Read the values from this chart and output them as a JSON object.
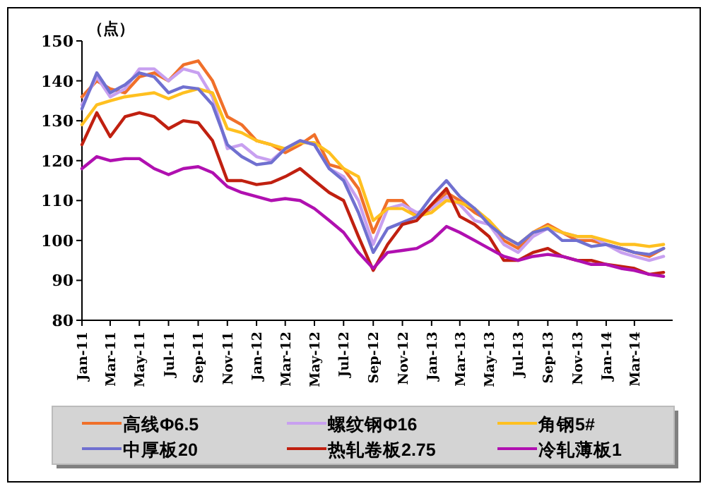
{
  "chart_data": {
    "type": "line",
    "ylabel": "（点）",
    "x": [
      "2011-01",
      "2011-02",
      "2011-03",
      "2011-04",
      "2011-05",
      "2011-06",
      "2011-07",
      "2011-08",
      "2011-09",
      "2011-10",
      "2011-11",
      "2011-12",
      "2012-01",
      "2012-02",
      "2012-03",
      "2012-04",
      "2012-05",
      "2012-06",
      "2012-07",
      "2012-08",
      "2012-09",
      "2012-10",
      "2012-11",
      "2012-12",
      "2013-01",
      "2013-02",
      "2013-03",
      "2013-04",
      "2013-05",
      "2013-06",
      "2013-07",
      "2013-08",
      "2013-09",
      "2013-10",
      "2013-11",
      "2013-12",
      "2014-01",
      "2014-02",
      "2014-03",
      "2014-04",
      "2014-05"
    ],
    "xlim": [
      "2011-01",
      "2014-05-20"
    ],
    "xticks": [
      {
        "value": "2011-01",
        "label": "Jan-11"
      },
      {
        "value": "2011-03",
        "label": "Mar-11"
      },
      {
        "value": "2011-05",
        "label": "May-11"
      },
      {
        "value": "2011-07",
        "label": "Jul-11"
      },
      {
        "value": "2011-09",
        "label": "Sep-11"
      },
      {
        "value": "2011-11",
        "label": "Nov-11"
      },
      {
        "value": "2012-01",
        "label": "Jan-12"
      },
      {
        "value": "2012-03",
        "label": "Mar-12"
      },
      {
        "value": "2012-05",
        "label": "May-12"
      },
      {
        "value": "2012-07",
        "label": "Jul-12"
      },
      {
        "value": "2012-09",
        "label": "Sep-12"
      },
      {
        "value": "2012-11",
        "label": "Nov-12"
      },
      {
        "value": "2013-01",
        "label": "Jan-13"
      },
      {
        "value": "2013-03",
        "label": "Mar-13"
      },
      {
        "value": "2013-05",
        "label": "May-13"
      },
      {
        "value": "2013-07",
        "label": "Jul-13"
      },
      {
        "value": "2013-09",
        "label": "Sep-13"
      },
      {
        "value": "2013-11",
        "label": "Nov-13"
      },
      {
        "value": "2014-01",
        "label": "Jan-14"
      },
      {
        "value": "2014-03",
        "label": "Mar-14"
      }
    ],
    "ylim": [
      80,
      150
    ],
    "yticks": [
      80,
      90,
      100,
      110,
      120,
      130,
      140,
      150
    ],
    "grid": false,
    "legend": "bottom",
    "marker": "none",
    "line_style": "solid",
    "series": [
      {
        "name": "高线Φ6.5",
        "color": "#f0702a",
        "values": [
          136,
          140,
          138,
          137,
          141,
          142,
          140,
          144,
          145,
          140,
          131,
          129,
          125,
          124,
          122,
          124,
          126.5,
          119,
          118,
          113,
          102,
          110,
          110,
          106,
          108,
          112,
          110,
          107,
          105,
          100,
          98,
          102,
          104,
          102,
          100,
          100,
          99,
          98,
          97,
          96,
          98
        ]
      },
      {
        "name": "螺纹钢Φ16",
        "color": "#c8a0f0",
        "values": [
          134,
          141,
          136,
          138,
          143,
          143,
          140,
          143,
          142,
          136,
          123,
          124,
          121,
          120,
          123,
          125,
          124,
          118,
          116,
          110,
          99,
          108,
          109,
          107,
          108,
          111,
          109,
          105,
          104,
          99,
          97,
          101,
          103,
          102,
          101,
          101,
          99,
          97,
          96,
          95,
          96
        ]
      },
      {
        "name": "角钢5#",
        "color": "#ffc020",
        "values": [
          129,
          134,
          135,
          136,
          136.5,
          137,
          135.5,
          137,
          138,
          137,
          128,
          127,
          125,
          124,
          123,
          124.5,
          124.5,
          122,
          118,
          116,
          105,
          108,
          108,
          106,
          107,
          110,
          109.5,
          108,
          105,
          101,
          99,
          102,
          103.5,
          102,
          101,
          101,
          100,
          99,
          99,
          98.5,
          99
        ]
      },
      {
        "name": "中厚板20",
        "color": "#7070d0",
        "values": [
          133,
          142,
          137,
          139,
          142,
          141,
          137,
          138.5,
          138,
          134,
          124,
          121,
          119,
          119.5,
          123,
          125,
          124,
          118,
          115,
          107,
          97,
          103,
          104.5,
          106,
          111,
          115,
          111,
          108,
          104,
          101,
          99,
          102,
          103,
          100,
          100,
          98.5,
          99,
          98,
          97,
          96.5,
          98
        ]
      },
      {
        "name": "热轧卷板2.75",
        "color": "#c02010",
        "values": [
          124,
          132,
          126,
          131,
          132,
          131,
          128,
          130,
          129.5,
          125,
          115,
          115,
          114,
          114.5,
          116,
          118,
          115,
          112,
          110,
          101,
          92.5,
          99,
          104,
          105,
          109,
          113,
          106,
          104,
          101,
          95,
          95,
          97,
          98,
          96,
          95,
          95,
          94,
          93.5,
          93,
          91.5,
          92
        ]
      },
      {
        "name": "冷轧薄板1",
        "color": "#b010b0",
        "values": [
          118,
          121,
          120,
          120.5,
          120.5,
          118,
          116.5,
          118,
          118.5,
          117,
          113.5,
          112,
          111,
          110,
          110.5,
          110,
          108,
          105,
          102,
          97,
          93,
          97,
          97.5,
          98,
          100,
          103.5,
          102,
          100,
          98,
          96,
          95,
          96,
          96.5,
          96,
          95,
          94,
          94,
          93,
          92.5,
          91.5,
          91
        ]
      }
    ]
  }
}
